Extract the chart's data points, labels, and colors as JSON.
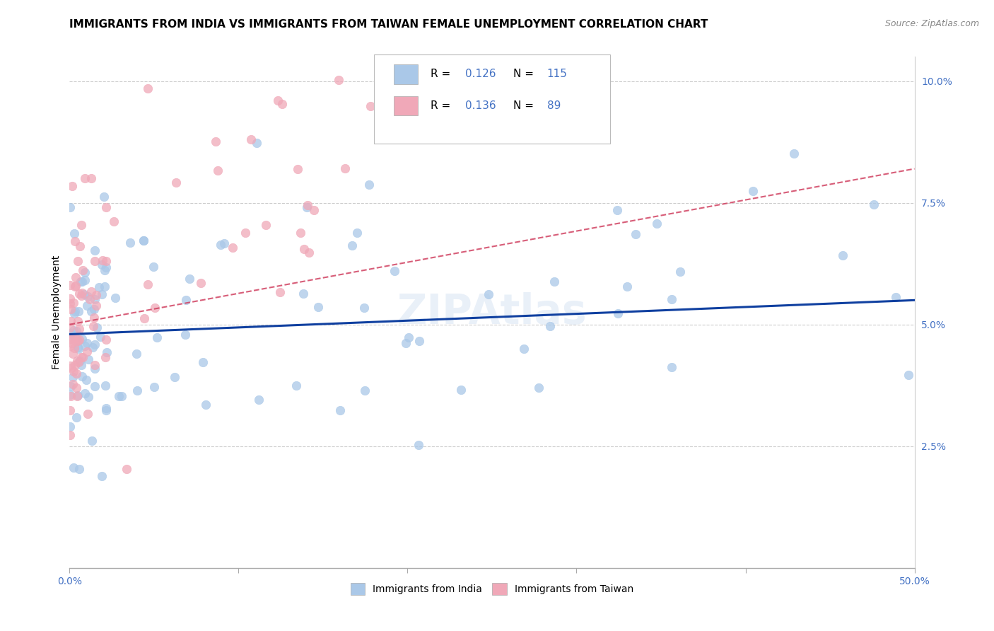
{
  "title": "IMMIGRANTS FROM INDIA VS IMMIGRANTS FROM TAIWAN FEMALE UNEMPLOYMENT CORRELATION CHART",
  "source": "Source: ZipAtlas.com",
  "ylabel": "Female Unemployment",
  "xlim": [
    0.0,
    0.5
  ],
  "ylim": [
    0.0,
    0.105
  ],
  "xticks": [
    0.0,
    0.1,
    0.2,
    0.3,
    0.4,
    0.5
  ],
  "xticklabels": [
    "0.0%",
    "",
    "",
    "",
    "",
    "50.0%"
  ],
  "yticks": [
    0.025,
    0.05,
    0.075,
    0.1
  ],
  "yticklabels": [
    "2.5%",
    "5.0%",
    "7.5%",
    "10.0%"
  ],
  "india_color": "#aac8e8",
  "taiwan_color": "#f0a8b8",
  "india_line_color": "#1040a0",
  "taiwan_line_color": "#d04060",
  "india_R": 0.126,
  "india_N": 115,
  "taiwan_R": 0.136,
  "taiwan_N": 89,
  "watermark": "ZIPAtlas",
  "title_fontsize": 11,
  "source_fontsize": 9,
  "axis_label_fontsize": 10,
  "tick_fontsize": 10,
  "legend_fontsize": 11,
  "india_line_start_y": 0.048,
  "india_line_end_y": 0.055,
  "taiwan_line_start_y": 0.05,
  "taiwan_line_end_y": 0.082
}
